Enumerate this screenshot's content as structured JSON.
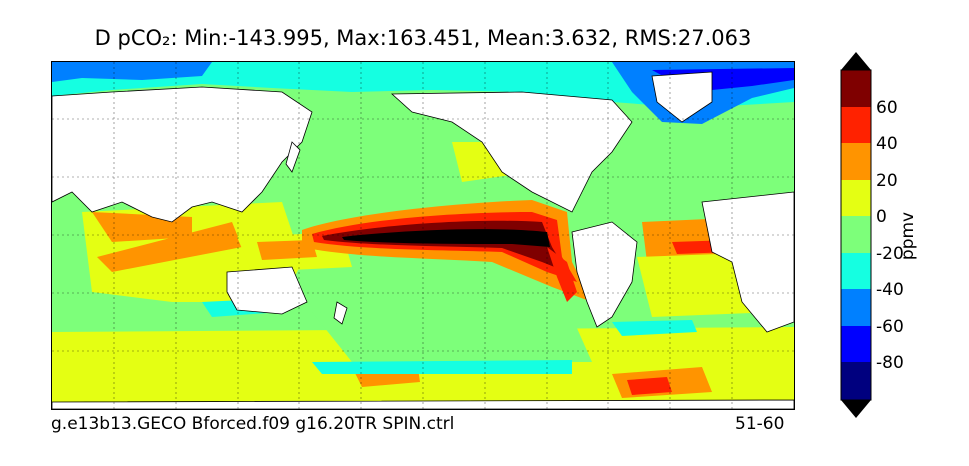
{
  "title": "D pCO₂: Min:-143.995, Max:163.451, Mean:3.632, RMS:27.063",
  "footer": {
    "experiment": "g.e13b13.GECO Bforced.f09 g16.20TR SPIN.ctrl",
    "years": "51-60"
  },
  "colorbar": {
    "unit": "ppmv",
    "tick_labels": [
      "60",
      "40",
      "20",
      "0",
      "-20",
      "-40",
      "-60",
      "-80"
    ],
    "levels": [
      -100,
      -80,
      -60,
      -40,
      -20,
      0,
      20,
      40,
      60,
      80
    ],
    "colors": [
      "#00007f",
      "#0000ff",
      "#0080ff",
      "#15ffe1",
      "#7dff7a",
      "#e4ff13",
      "#ff9400",
      "#ff2200",
      "#7f0000"
    ],
    "under_color": "#000000",
    "over_color": "#000000",
    "extend": "both"
  },
  "map": {
    "projection": "cylindrical",
    "grid": true,
    "land_color": "#ffffff",
    "background_field": "#7dff7a"
  }
}
